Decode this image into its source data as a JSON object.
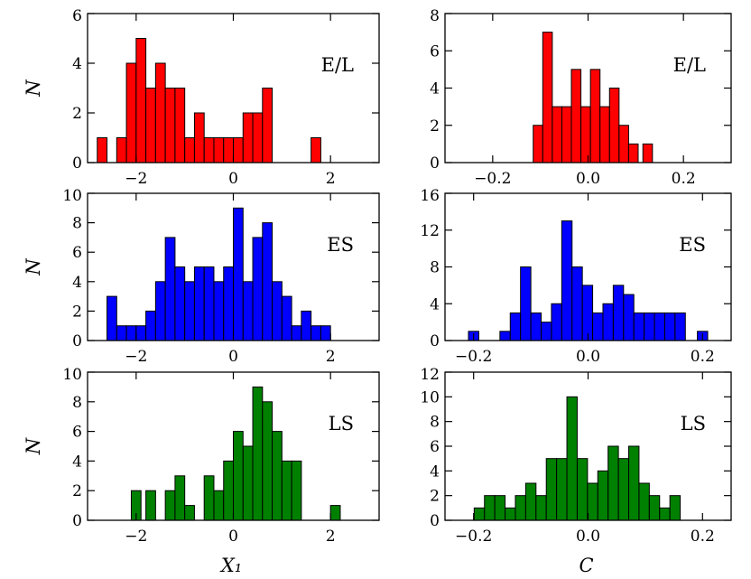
{
  "chart_data": [
    {
      "type": "bar",
      "label": "E/L",
      "color": "#ff0000",
      "xlabel": "",
      "ylabel": "N",
      "xlim": [
        -3.0,
        3.0
      ],
      "ylim": [
        0,
        6
      ],
      "xticks": [
        -2,
        0,
        2
      ],
      "yticks": [
        0,
        2,
        4,
        6
      ],
      "xtick_labels": [
        "−2",
        "0",
        "2"
      ],
      "ytick_labels": [
        "0",
        "2",
        "4",
        "6"
      ],
      "bin_width": 0.2,
      "x": [
        -2.7,
        -2.3,
        -2.1,
        -1.9,
        -1.7,
        -1.5,
        -1.3,
        -1.1,
        -0.9,
        -0.7,
        -0.5,
        -0.3,
        -0.1,
        0.1,
        0.3,
        0.5,
        0.7,
        1.7
      ],
      "values": [
        1,
        1,
        4,
        5,
        3,
        4,
        3,
        3,
        1,
        2,
        1,
        1,
        1,
        1,
        2,
        2,
        3,
        1
      ]
    },
    {
      "type": "bar",
      "label": "E/L",
      "color": "#ff0000",
      "xlabel": "",
      "ylabel": "",
      "xlim": [
        -0.3,
        0.3
      ],
      "ylim": [
        0,
        8
      ],
      "xticks": [
        -0.2,
        0.0,
        0.2
      ],
      "yticks": [
        0,
        2,
        4,
        6,
        8
      ],
      "xtick_labels": [
        "−0.2",
        "0.0",
        "0.2"
      ],
      "ytick_labels": [
        "0",
        "2",
        "4",
        "6",
        "8"
      ],
      "bin_width": 0.02,
      "x": [
        -0.105,
        -0.085,
        -0.065,
        -0.045,
        -0.025,
        -0.005,
        0.015,
        0.035,
        0.055,
        0.075,
        0.095,
        0.125
      ],
      "values": [
        2,
        7,
        3,
        3,
        5,
        3,
        5,
        3,
        4,
        2,
        1,
        1
      ]
    },
    {
      "type": "bar",
      "label": "ES",
      "color": "#0000ff",
      "xlabel": "",
      "ylabel": "N",
      "xlim": [
        -3.0,
        3.0
      ],
      "ylim": [
        0,
        10
      ],
      "xticks": [
        -2,
        0,
        2
      ],
      "yticks": [
        0,
        2,
        4,
        6,
        8,
        10
      ],
      "xtick_labels": [
        "−2",
        "0",
        "2"
      ],
      "ytick_labels": [
        "0",
        "2",
        "4",
        "6",
        "8",
        "10"
      ],
      "bin_width": 0.2,
      "x": [
        -2.5,
        -2.3,
        -2.1,
        -1.9,
        -1.7,
        -1.5,
        -1.3,
        -1.1,
        -0.9,
        -0.7,
        -0.5,
        -0.3,
        -0.1,
        0.1,
        0.3,
        0.5,
        0.7,
        0.9,
        1.1,
        1.3,
        1.5,
        1.7,
        1.9
      ],
      "values": [
        3,
        1,
        1,
        1,
        2,
        4,
        7,
        5,
        4,
        5,
        5,
        4,
        5,
        9,
        4,
        7,
        8,
        4,
        3,
        1,
        2,
        1,
        1
      ]
    },
    {
      "type": "bar",
      "label": "ES",
      "color": "#0000ff",
      "xlabel": "",
      "ylabel": "",
      "xlim": [
        -0.25,
        0.25
      ],
      "ylim": [
        0,
        16
      ],
      "xticks": [
        -0.2,
        0.0,
        0.2
      ],
      "yticks": [
        0,
        4,
        8,
        12,
        16
      ],
      "xtick_labels": [
        "−0.2",
        "0.0",
        "0.2"
      ],
      "ytick_labels": [
        "0",
        "4",
        "8",
        "12",
        "16"
      ],
      "bin_width": 0.018,
      "x": [
        -0.2,
        -0.145,
        -0.127,
        -0.109,
        -0.091,
        -0.073,
        -0.055,
        -0.037,
        -0.019,
        -0.001,
        0.017,
        0.035,
        0.053,
        0.071,
        0.089,
        0.107,
        0.125,
        0.143,
        0.161,
        0.2
      ],
      "values": [
        1,
        1,
        3,
        8,
        3,
        2,
        4,
        13,
        8,
        6,
        3,
        4,
        6,
        5,
        3,
        3,
        3,
        3,
        3,
        1
      ]
    },
    {
      "type": "bar",
      "label": "LS",
      "color": "#008000",
      "xlabel": "X₁",
      "ylabel": "N",
      "xlim": [
        -3.0,
        3.0
      ],
      "ylim": [
        0,
        10
      ],
      "xticks": [
        -2,
        0,
        2
      ],
      "yticks": [
        0,
        2,
        4,
        6,
        8,
        10
      ],
      "xtick_labels": [
        "−2",
        "0",
        "2"
      ],
      "ytick_labels": [
        "0",
        "2",
        "4",
        "6",
        "8",
        "10"
      ],
      "bin_width": 0.2,
      "x": [
        -2.0,
        -1.7,
        -1.3,
        -1.1,
        -0.9,
        -0.5,
        -0.3,
        -0.1,
        0.1,
        0.3,
        0.5,
        0.7,
        0.9,
        1.1,
        1.3,
        2.1
      ],
      "values": [
        2,
        2,
        2,
        3,
        1,
        3,
        2,
        4,
        6,
        5,
        9,
        8,
        6,
        4,
        4,
        1
      ]
    },
    {
      "type": "bar",
      "label": "LS",
      "color": "#008000",
      "xlabel": "C",
      "ylabel": "",
      "xlim": [
        -0.25,
        0.25
      ],
      "ylim": [
        0,
        12
      ],
      "xticks": [
        -0.2,
        0.0,
        0.2
      ],
      "yticks": [
        0,
        2,
        4,
        6,
        8,
        10,
        12
      ],
      "xtick_labels": [
        "−0.2",
        "0.0",
        "0.2"
      ],
      "ytick_labels": [
        "0",
        "2",
        "4",
        "6",
        "8",
        "10",
        "12"
      ],
      "bin_width": 0.018,
      "x": [
        -0.19,
        -0.172,
        -0.154,
        -0.136,
        -0.118,
        -0.1,
        -0.082,
        -0.064,
        -0.046,
        -0.028,
        -0.01,
        0.008,
        0.026,
        0.044,
        0.062,
        0.08,
        0.098,
        0.116,
        0.134,
        0.152
      ],
      "values": [
        1,
        2,
        2,
        1,
        2,
        3,
        2,
        5,
        5,
        10,
        5,
        3,
        4,
        6,
        5,
        6,
        3,
        2,
        1,
        2
      ]
    }
  ]
}
